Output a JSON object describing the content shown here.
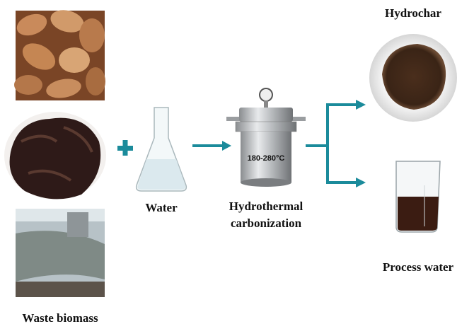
{
  "input": {
    "label": "Waste biomass"
  },
  "water": {
    "label": "Water"
  },
  "reactor": {
    "temperature": "180-280°C",
    "label_lines": [
      "Hydrothermal",
      "carbonization"
    ]
  },
  "outputs": [
    {
      "label": "Hydrochar"
    },
    {
      "label": "Process water"
    }
  ]
}
